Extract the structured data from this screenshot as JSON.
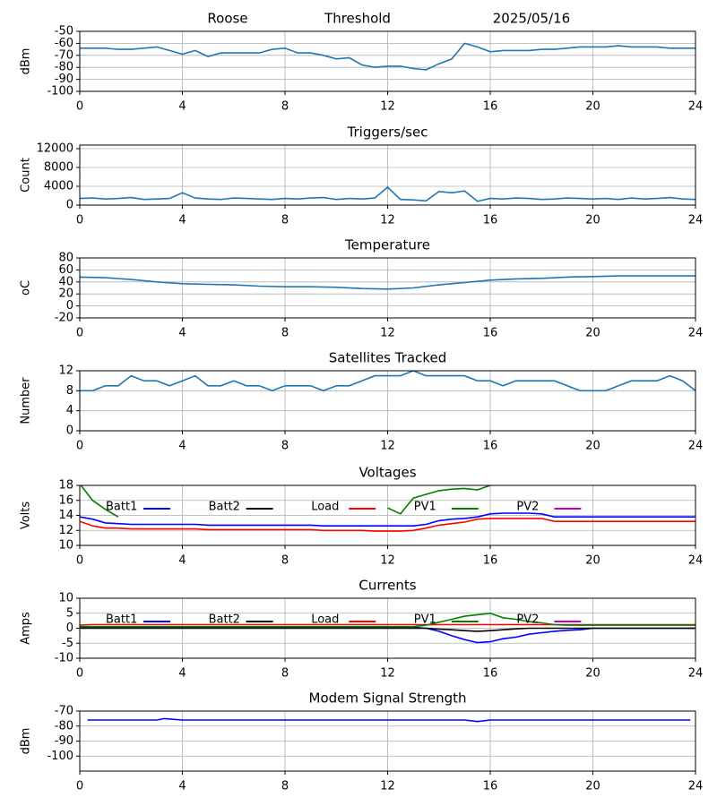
{
  "chart_data": [
    {
      "type": "line",
      "title_left": "Roose",
      "title": "Threshold",
      "title_right": "2025/05/16",
      "ylabel": "dBm",
      "color": "#1f77b4",
      "x": [
        0,
        0.5,
        1,
        1.5,
        2,
        2.5,
        3,
        3.5,
        4,
        4.5,
        5,
        5.5,
        6,
        6.5,
        7,
        7.5,
        8,
        8.5,
        9,
        9.5,
        10,
        10.5,
        11,
        11.5,
        12,
        12.5,
        13,
        13.5,
        14,
        14.5,
        15,
        15.5,
        16,
        16.5,
        17,
        17.5,
        18,
        18.5,
        19,
        19.5,
        20,
        20.5,
        21,
        21.5,
        22,
        22.5,
        23,
        23.5,
        24
      ],
      "values": [
        -64,
        -64,
        -64,
        -65,
        -65,
        -64,
        -63,
        -66,
        -69,
        -66,
        -71,
        -68,
        -68,
        -68,
        -68,
        -65,
        -64,
        -68,
        -68,
        -70,
        -73,
        -72,
        -78,
        -80,
        -79,
        -79,
        -81,
        -82,
        -77,
        -73,
        -60,
        -63,
        -67,
        -66,
        -66,
        -66,
        -65,
        -65,
        -64,
        -63,
        -63,
        -63,
        -62,
        -63,
        -63,
        -63,
        -64,
        -64,
        -64
      ],
      "xlim": [
        0,
        24
      ],
      "xticks": [
        0,
        4,
        8,
        12,
        16,
        20,
        24
      ],
      "ylim": [
        -100,
        -50
      ],
      "yticks": [
        -50,
        -60,
        -70,
        -80,
        -90,
        -100
      ],
      "grid": true
    },
    {
      "type": "line",
      "title": "Triggers/sec",
      "ylabel": "Count",
      "color": "#1f77b4",
      "x": [
        0,
        0.5,
        1,
        1.5,
        2,
        2.5,
        3,
        3.5,
        4,
        4.5,
        5,
        5.5,
        6,
        6.5,
        7,
        7.5,
        8,
        8.5,
        9,
        9.5,
        10,
        10.5,
        11,
        11.5,
        12,
        12.5,
        13,
        13.5,
        14,
        14.5,
        15,
        15.5,
        16,
        16.5,
        17,
        17.5,
        18,
        18.5,
        19,
        19.5,
        20,
        20.5,
        21,
        21.5,
        22,
        22.5,
        23,
        23.5,
        24
      ],
      "values": [
        1400,
        1500,
        1300,
        1400,
        1600,
        1200,
        1300,
        1400,
        2600,
        1500,
        1300,
        1200,
        1500,
        1400,
        1300,
        1200,
        1400,
        1300,
        1500,
        1600,
        1200,
        1400,
        1300,
        1500,
        3800,
        1200,
        1100,
        900,
        2900,
        2600,
        3000,
        800,
        1400,
        1300,
        1500,
        1400,
        1200,
        1300,
        1500,
        1400,
        1300,
        1400,
        1200,
        1500,
        1300,
        1400,
        1600,
        1300,
        1200
      ],
      "xlim": [
        0,
        24
      ],
      "xticks": [
        0,
        4,
        8,
        12,
        16,
        20,
        24
      ],
      "ylim": [
        0,
        12760
      ],
      "yticks": [
        0,
        4000,
        8000,
        12000
      ],
      "grid": true
    },
    {
      "type": "line",
      "title": "Temperature",
      "ylabel": "oC",
      "color": "#1f77b4",
      "x": [
        0,
        1,
        2,
        3,
        4,
        5,
        6,
        7,
        8,
        9,
        10,
        11,
        12,
        13,
        14,
        15,
        16,
        17,
        18,
        19,
        20,
        21,
        22,
        23,
        24
      ],
      "values": [
        48,
        47,
        44,
        40,
        37,
        36,
        35,
        33,
        32,
        32,
        31,
        29,
        28,
        30,
        35,
        39,
        43,
        45,
        46,
        48,
        49,
        50,
        50,
        50,
        50
      ],
      "xlim": [
        0,
        24
      ],
      "xticks": [
        0,
        4,
        8,
        12,
        16,
        20,
        24
      ],
      "ylim": [
        -20,
        80
      ],
      "yticks": [
        -20,
        0,
        20,
        40,
        60,
        80
      ],
      "grid": true
    },
    {
      "type": "line",
      "title": "Satellites Tracked",
      "ylabel": "Number",
      "color": "#1f77b4",
      "x": [
        0,
        0.5,
        1,
        1.5,
        2,
        2.5,
        3,
        3.5,
        4,
        4.5,
        5,
        5.5,
        6,
        6.5,
        7,
        7.5,
        8,
        8.5,
        9,
        9.5,
        10,
        10.5,
        11,
        11.5,
        12,
        12.5,
        13,
        13.5,
        14,
        14.5,
        15,
        15.5,
        16,
        16.5,
        17,
        17.5,
        18,
        18.5,
        19,
        19.5,
        20,
        20.5,
        21,
        21.5,
        22,
        22.5,
        23,
        23.5,
        24
      ],
      "values": [
        8,
        8,
        9,
        9,
        11,
        10,
        10,
        9,
        10,
        11,
        9,
        9,
        10,
        9,
        9,
        8,
        9,
        9,
        9,
        8,
        9,
        9,
        10,
        11,
        11,
        11,
        12,
        11,
        11,
        11,
        11,
        10,
        10,
        9,
        10,
        10,
        10,
        10,
        9,
        8,
        8,
        8,
        9,
        10,
        10,
        10,
        11,
        10,
        8
      ],
      "xlim": [
        0,
        24
      ],
      "xticks": [
        0,
        4,
        8,
        12,
        16,
        20,
        24
      ],
      "ylim": [
        0,
        12
      ],
      "yticks": [
        0,
        4,
        8,
        12
      ],
      "grid": true
    },
    {
      "type": "line",
      "title": "Voltages",
      "ylabel": "Volts",
      "legend": "top-inline",
      "x": [
        0,
        0.5,
        1,
        1.5,
        2,
        2.5,
        3,
        3.5,
        4,
        4.5,
        5,
        5.5,
        6,
        6.5,
        7,
        7.5,
        8,
        8.5,
        9,
        9.5,
        10,
        10.5,
        11,
        11.5,
        12,
        12.5,
        13,
        13.5,
        14,
        14.5,
        15,
        15.5,
        16,
        16.5,
        17,
        17.5,
        18,
        18.5,
        19,
        19.5,
        20,
        20.5,
        21,
        21.5,
        22,
        22.5,
        23,
        23.5,
        24
      ],
      "series": [
        {
          "name": "Batt1",
          "color": "#0000ff",
          "values": [
            13.8,
            13.5,
            13.0,
            12.9,
            12.8,
            12.8,
            12.8,
            12.8,
            12.8,
            12.8,
            12.7,
            12.7,
            12.7,
            12.7,
            12.7,
            12.7,
            12.7,
            12.7,
            12.7,
            12.6,
            12.6,
            12.6,
            12.6,
            12.6,
            12.6,
            12.6,
            12.6,
            12.8,
            13.3,
            13.5,
            13.6,
            13.8,
            14.2,
            14.3,
            14.3,
            14.3,
            14.2,
            13.8,
            13.8,
            13.8,
            13.8,
            13.8,
            13.8,
            13.8,
            13.8,
            13.8,
            13.8,
            13.8,
            13.8
          ]
        },
        {
          "name": "Batt2",
          "color": "#000000",
          "values": [
            null,
            null,
            null,
            null,
            null,
            null,
            null,
            null,
            null,
            null,
            null,
            null,
            null,
            null,
            null,
            null,
            null,
            null,
            null,
            null,
            null,
            null,
            null,
            null,
            null,
            null,
            null,
            null,
            null,
            null,
            null,
            null,
            null,
            null,
            null,
            null,
            null,
            null,
            null,
            null,
            null,
            null,
            null,
            null,
            null,
            null,
            null,
            null,
            null
          ]
        },
        {
          "name": "Load",
          "color": "#ff0000",
          "values": [
            13.2,
            12.6,
            12.3,
            12.3,
            12.2,
            12.2,
            12.2,
            12.2,
            12.2,
            12.2,
            12.1,
            12.1,
            12.1,
            12.1,
            12.1,
            12.1,
            12.1,
            12.1,
            12.1,
            12.0,
            12.0,
            12.0,
            12.0,
            11.9,
            11.9,
            11.9,
            12.0,
            12.3,
            12.7,
            12.9,
            13.1,
            13.5,
            13.6,
            13.6,
            13.6,
            13.6,
            13.6,
            13.2,
            13.2,
            13.2,
            13.2,
            13.2,
            13.2,
            13.2,
            13.2,
            13.2,
            13.2,
            13.2,
            13.2
          ]
        },
        {
          "name": "PV1",
          "color": "#008000",
          "values": [
            18.2,
            16.0,
            14.8,
            13.8,
            null,
            null,
            null,
            null,
            null,
            null,
            null,
            null,
            null,
            null,
            null,
            null,
            null,
            null,
            null,
            null,
            null,
            null,
            null,
            null,
            15.0,
            14.2,
            16.3,
            16.8,
            17.3,
            17.5,
            17.6,
            17.4,
            18.0,
            null,
            null,
            null,
            null,
            null,
            null,
            null,
            null,
            null,
            null,
            null,
            null,
            null,
            null,
            null,
            null
          ]
        },
        {
          "name": "PV2",
          "color": "#bf00bf",
          "values": [
            null,
            null,
            null,
            null,
            null,
            null,
            null,
            null,
            null,
            null,
            null,
            null,
            null,
            null,
            null,
            null,
            null,
            null,
            null,
            null,
            null,
            null,
            null,
            null,
            null,
            null,
            null,
            null,
            null,
            null,
            null,
            null,
            null,
            null,
            null,
            null,
            null,
            null,
            null,
            null,
            null,
            null,
            null,
            null,
            null,
            null,
            null,
            null,
            null
          ]
        }
      ],
      "xlim": [
        0,
        24
      ],
      "xticks": [
        0,
        4,
        8,
        12,
        16,
        20,
        24
      ],
      "ylim": [
        10,
        18
      ],
      "yticks": [
        10,
        12,
        14,
        16,
        18
      ],
      "grid": true
    },
    {
      "type": "line",
      "title": "Currents",
      "ylabel": "Amps",
      "legend": "top-inline",
      "x": [
        0,
        0.5,
        1,
        1.5,
        2,
        2.5,
        3,
        3.5,
        4,
        4.5,
        5,
        5.5,
        6,
        6.5,
        7,
        7.5,
        8,
        8.5,
        9,
        9.5,
        10,
        10.5,
        11,
        11.5,
        12,
        12.5,
        13,
        13.5,
        14,
        14.5,
        15,
        15.5,
        16,
        16.5,
        17,
        17.5,
        18,
        18.5,
        19,
        19.5,
        20,
        20.5,
        21,
        21.5,
        22,
        22.5,
        23,
        23.5,
        24
      ],
      "series": [
        {
          "name": "Batt1",
          "color": "#0000ff",
          "values": [
            0.3,
            0.3,
            0.3,
            0.3,
            0.3,
            0.3,
            0.3,
            0.3,
            0.3,
            0.3,
            0.3,
            0.3,
            0.3,
            0.3,
            0.3,
            0.3,
            0.3,
            0.3,
            0.3,
            0.3,
            0.3,
            0.3,
            0.3,
            0.3,
            0.3,
            0.3,
            0.3,
            0,
            -1,
            -2.5,
            -3.8,
            -4.8,
            -4.5,
            -3.5,
            -3,
            -2,
            -1.5,
            -1,
            -0.7,
            -0.5,
            0,
            0,
            0,
            0,
            0,
            0,
            0,
            0,
            0
          ]
        },
        {
          "name": "Batt2",
          "color": "#000000",
          "values": [
            0,
            0,
            0,
            0,
            0,
            0,
            0,
            0,
            0,
            0,
            0,
            0,
            0,
            0,
            0,
            0,
            0,
            0,
            0,
            0,
            0,
            0,
            0,
            0,
            0,
            0,
            0,
            0,
            -0.3,
            -0.5,
            -0.8,
            -1,
            -0.8,
            -0.5,
            -0.2,
            0,
            0,
            0,
            0,
            0,
            0,
            0,
            0,
            0,
            0,
            0,
            0,
            0,
            0
          ]
        },
        {
          "name": "Load",
          "color": "#ff0000",
          "values": [
            1.0,
            1.2,
            1.2,
            1.2,
            1.2,
            1.2,
            1.2,
            1.2,
            1.2,
            1.2,
            1.2,
            1.2,
            1.2,
            1.2,
            1.2,
            1.2,
            1.2,
            1.2,
            1.2,
            1.2,
            1.2,
            1.2,
            1.2,
            1.2,
            1.2,
            1.2,
            1.2,
            1.2,
            1.2,
            1.2,
            1.2,
            1.2,
            1.2,
            1.2,
            1.2,
            1.2,
            1.2,
            1.2,
            1.2,
            1.2,
            1.2,
            1.2,
            1.2,
            1.2,
            1.2,
            1.2,
            1.2,
            1.2,
            1.2
          ]
        },
        {
          "name": "PV1",
          "color": "#008000",
          "values": [
            0.5,
            0.5,
            0.5,
            0.5,
            0.5,
            0.5,
            0.5,
            0.5,
            0.5,
            0.5,
            0.5,
            0.5,
            0.5,
            0.5,
            0.5,
            0.5,
            0.5,
            0.5,
            0.5,
            0.5,
            0.5,
            0.5,
            0.5,
            0.5,
            0.5,
            0.5,
            0.5,
            1.0,
            2.0,
            3.0,
            4.0,
            4.5,
            5.0,
            3.5,
            3.0,
            2.2,
            1.8,
            1.2,
            1.0,
            1.0,
            1.0,
            1.0,
            1.0,
            1.0,
            1.0,
            1.0,
            1.0,
            1.0,
            1.0
          ]
        },
        {
          "name": "PV2",
          "color": "#bf00bf",
          "values": [
            null,
            null,
            null,
            null,
            null,
            null,
            null,
            null,
            null,
            null,
            null,
            null,
            null,
            null,
            null,
            null,
            null,
            null,
            null,
            null,
            null,
            null,
            null,
            null,
            null,
            null,
            null,
            null,
            null,
            null,
            null,
            null,
            null,
            null,
            null,
            null,
            null,
            null,
            null,
            null,
            null,
            null,
            null,
            null,
            null,
            null,
            null,
            null,
            null
          ]
        }
      ],
      "xlim": [
        0,
        24
      ],
      "xticks": [
        0,
        4,
        8,
        12,
        16,
        20,
        24
      ],
      "ylim": [
        -10,
        10
      ],
      "yticks": [
        -10,
        -5,
        0,
        5,
        10
      ],
      "grid": true
    },
    {
      "type": "line",
      "title": "Modem Signal Strength",
      "ylabel": "dBm",
      "color": "#0000ff",
      "x": [
        0.3,
        1,
        2,
        3,
        3.3,
        4,
        5,
        6,
        7,
        8,
        9,
        10,
        11,
        12,
        13,
        14,
        15,
        15.5,
        16,
        17,
        18,
        19,
        20,
        21,
        22,
        23,
        23.8
      ],
      "values": [
        -76,
        -76,
        -76,
        -76,
        -75,
        -76,
        -76,
        -76,
        -76,
        -76,
        -76,
        -76,
        -76,
        -76,
        -76,
        -76,
        -76,
        -77,
        -76,
        -76,
        -76,
        -76,
        -76,
        -76,
        -76,
        -76,
        -76
      ],
      "xlim": [
        0,
        24
      ],
      "xticks": [
        0,
        4,
        8,
        12,
        16,
        20,
        24
      ],
      "ylim": [
        -110,
        -70
      ],
      "yticks": [
        -70,
        -80,
        -90,
        -100
      ],
      "grid": true
    }
  ]
}
